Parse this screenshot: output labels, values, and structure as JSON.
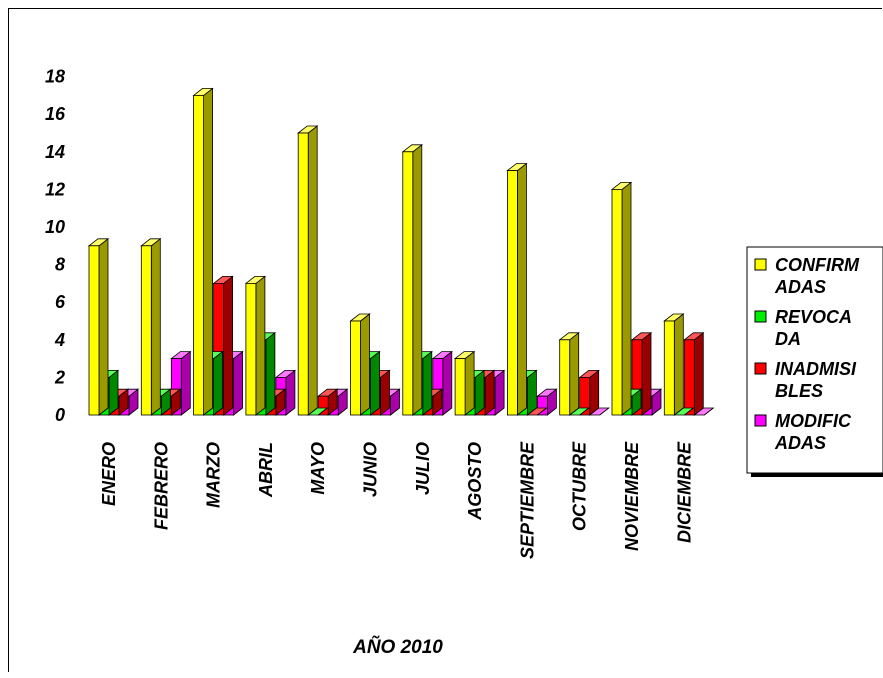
{
  "chart_data": {
    "type": "bar",
    "title": "",
    "xlabel": "AÑO 2010",
    "ylabel": "",
    "ylim": [
      0,
      18
    ],
    "yticks": [
      "0",
      "2",
      "4",
      "6",
      "8",
      "10",
      "12",
      "14",
      "16",
      "18"
    ],
    "categories": [
      "ENERO",
      "FEBRERO",
      "MARZO",
      "ABRIL",
      "MAYO",
      "JUNIO",
      "JULIO",
      "AGOSTO",
      "SEPTIEMBRE",
      "OCTUBRE",
      "NOVIEMBRE",
      "DICIEMBRE"
    ],
    "series": [
      {
        "name": "CONFIRMADAS",
        "legend_lines": [
          "CONFIRM",
          "ADAS"
        ],
        "color": "#ffff00",
        "side": "#9a9a00",
        "top": "#ffff66",
        "values": [
          9,
          9,
          17,
          7,
          15,
          5,
          14,
          3,
          13,
          4,
          12,
          5
        ]
      },
      {
        "name": "REVOCADA",
        "legend_lines": [
          "REVOCA",
          "DA"
        ],
        "color": "#00ee00",
        "side": "#008800",
        "top": "#55ff55",
        "values": [
          2,
          1,
          3,
          4,
          0,
          3,
          3,
          2,
          2,
          0,
          1,
          0
        ]
      },
      {
        "name": "INADMISIBLES",
        "legend_lines": [
          "INADMISI",
          "BLES"
        ],
        "color": "#ff0000",
        "side": "#9a0000",
        "top": "#ff5555",
        "values": [
          1,
          1,
          7,
          1,
          1,
          2,
          1,
          2,
          0,
          2,
          4,
          4
        ]
      },
      {
        "name": "MODIFICADAS",
        "legend_lines": [
          "MODIFIC",
          "ADAS"
        ],
        "color": "#ff00ff",
        "side": "#aa00aa",
        "top": "#ff77ff",
        "values": [
          1,
          3,
          3,
          2,
          1,
          1,
          3,
          2,
          1,
          0,
          1,
          0
        ]
      }
    ],
    "grid": false,
    "legend_position": "right"
  }
}
